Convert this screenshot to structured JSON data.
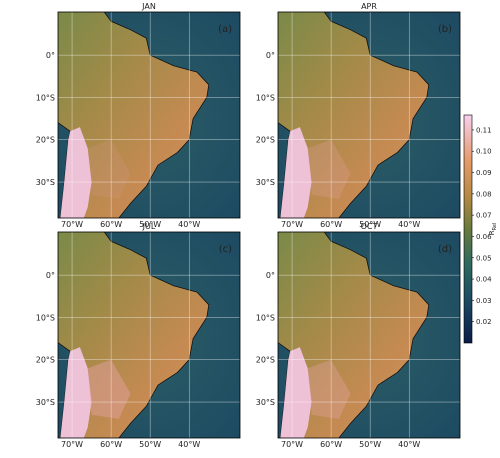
{
  "panels": [
    {
      "title": "JAN",
      "label": "(a)"
    },
    {
      "title": "APR",
      "label": "(b)"
    },
    {
      "title": "JUL",
      "label": "(c)"
    },
    {
      "title": "OCT",
      "label": "(d)"
    }
  ],
  "axes": {
    "xlim": [
      -73.6,
      -27
    ],
    "ylim": [
      -38.5,
      10.2
    ],
    "xticks": [
      {
        "value": -70,
        "label": "70°W"
      },
      {
        "value": -60,
        "label": "60°W"
      },
      {
        "value": -50,
        "label": "50°W"
      },
      {
        "value": -40,
        "label": "40°W"
      }
    ],
    "yticks": [
      {
        "value": 0,
        "label": "0°"
      },
      {
        "value": -10,
        "label": "10°S"
      },
      {
        "value": -20,
        "label": "20°S"
      },
      {
        "value": -30,
        "label": "30°S"
      }
    ]
  },
  "colorbar": {
    "label": "R",
    "label_sub": "Rel",
    "lim": [
      0.01,
      0.117
    ],
    "ticks": [
      0.02,
      0.03,
      0.04,
      0.05,
      0.06,
      0.07,
      0.08,
      0.09,
      {
        "value": 0.1,
        "label": "0.10"
      },
      0.11
    ]
  }
}
